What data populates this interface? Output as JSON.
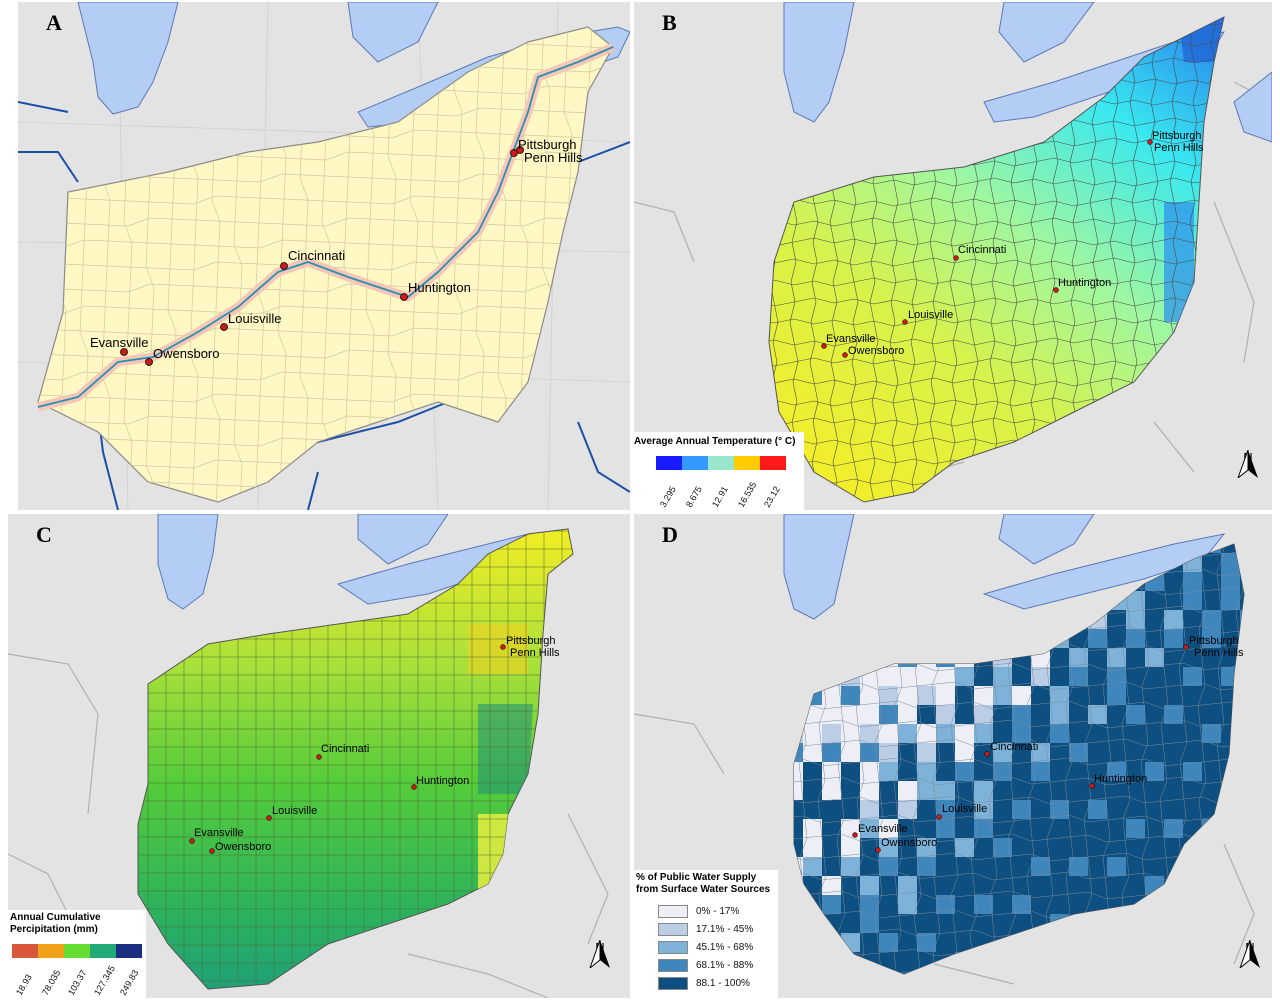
{
  "panels": [
    {
      "id": "A",
      "label": "A"
    },
    {
      "id": "B",
      "label": "B"
    },
    {
      "id": "C",
      "label": "C"
    },
    {
      "id": "D",
      "label": "D"
    }
  ],
  "cities": {
    "pittsburgh": "Pittsburgh",
    "penn_hills": "Penn Hills",
    "cincinnati": "Cincinnati",
    "huntington": "Huntington",
    "louisville": "Louisville",
    "evansville": "Evansville",
    "owensboro": "Owensboro"
  },
  "legend_temperature": {
    "title": "Average Annual Temperature (° C)",
    "colors": [
      "#1a1aff",
      "#3399ff",
      "#99e6cc",
      "#ffcc00",
      "#ff1a1a"
    ],
    "ticks": [
      "3.295",
      "8.675",
      "12.91",
      "16.535",
      "23.12"
    ]
  },
  "legend_precip": {
    "title_line1": "Annual Cumulative",
    "title_line2": "Percipitation (mm)",
    "colors": [
      "#d9573a",
      "#f0a31a",
      "#66dd33",
      "#22aa77",
      "#1a2f80"
    ],
    "ticks": [
      "18.93",
      "78.035",
      "103.37",
      "127.345",
      "249.83"
    ]
  },
  "legend_water": {
    "title_line1": "% of Public Water Supply",
    "title_line2": "from Surface Water Sources",
    "items": [
      {
        "label": "0% - 17%",
        "color": "#eeeef6"
      },
      {
        "label": "17.1% - 45%",
        "color": "#bccde6"
      },
      {
        "label": "45.1% - 68%",
        "color": "#7eb2d8"
      },
      {
        "label": "68.1% - 88%",
        "color": "#3f86bd"
      },
      {
        "label": "88.1 - 100%",
        "color": "#0d4f80"
      }
    ]
  },
  "north_letter": "N",
  "colors": {
    "lake": "#b4cdf5",
    "land": "#e3e3e3",
    "basin_a": "#fff8c4",
    "river": "#2a6fb8",
    "city": "#cc1a1a"
  }
}
